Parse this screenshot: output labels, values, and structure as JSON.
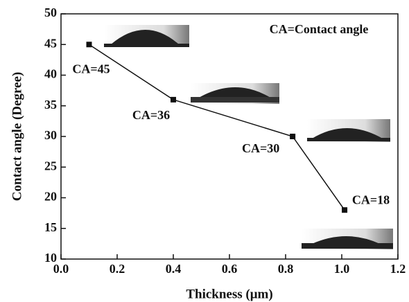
{
  "chart_data": {
    "type": "line",
    "annotation": "CA=Contact angle",
    "x_label": "Thickness (μm)",
    "y_label": "Contact angle (Degree)",
    "x": [
      0.1,
      0.4,
      0.825,
      1.01
    ],
    "values": [
      45,
      36,
      30,
      18
    ],
    "value_labels": [
      "CA=45",
      "CA=36",
      "CA=30",
      "CA=18"
    ],
    "color": "#111111",
    "xlim": [
      0,
      1.2
    ],
    "xticks": [
      {
        "value": 0,
        "label": "0.0"
      },
      0.2,
      0.4,
      0.6,
      0.8,
      {
        "value": 1,
        "label": "1.0"
      },
      1.2
    ],
    "ylim": [
      10,
      50
    ],
    "yticks": [
      10,
      15,
      20,
      25,
      30,
      35,
      40,
      45,
      50
    ]
  }
}
